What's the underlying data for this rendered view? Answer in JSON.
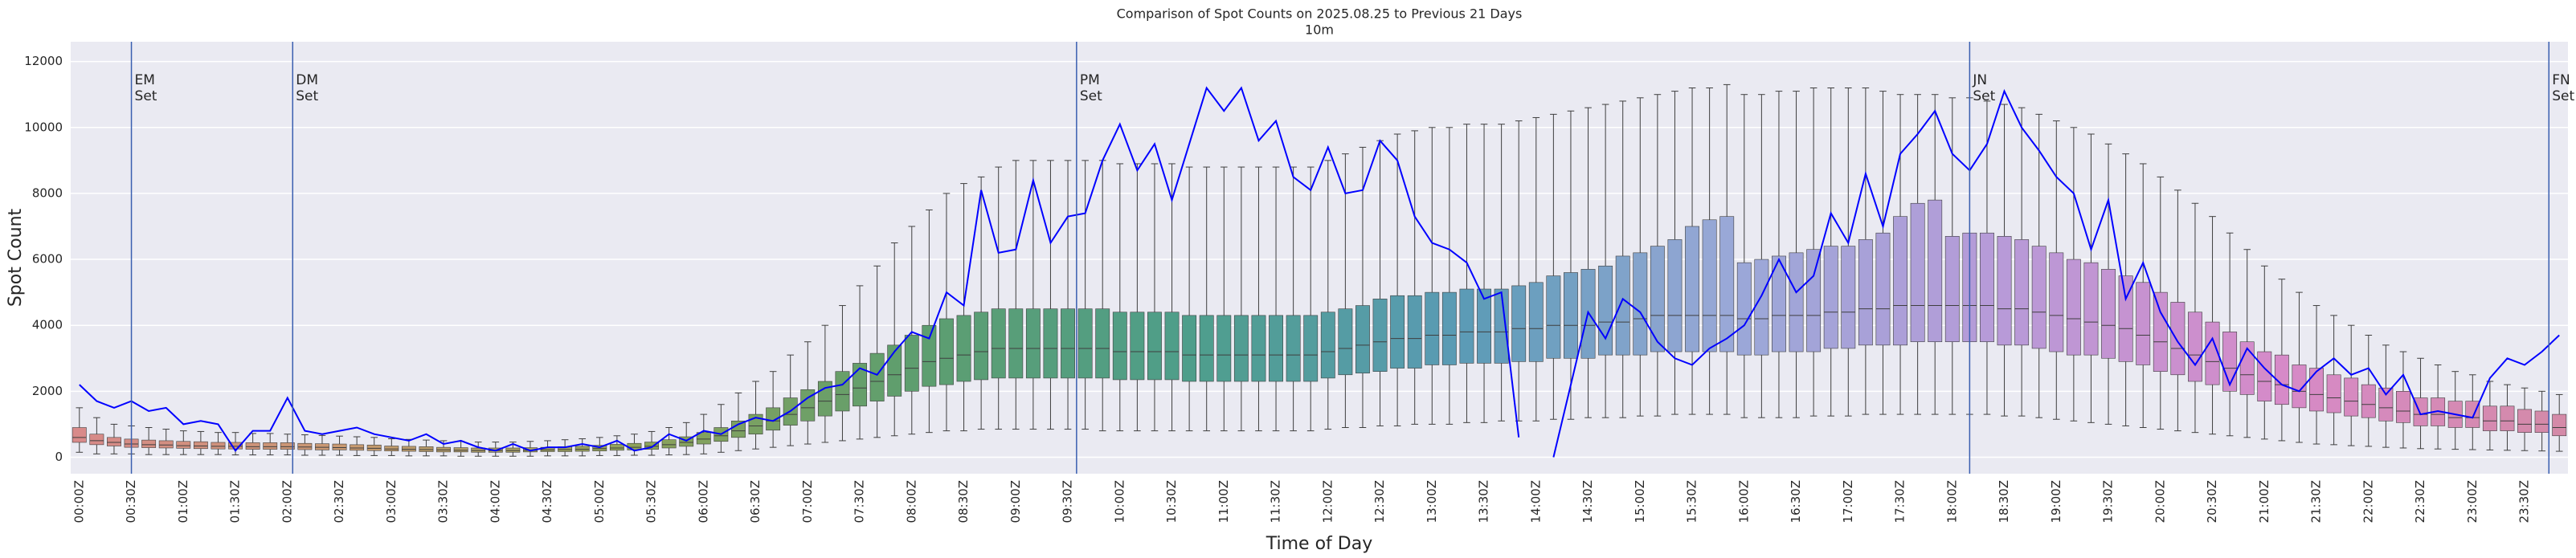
{
  "chart_data": {
    "type": "box",
    "title": "Comparison of Spot Counts on 2025.08.25 to Previous 21 Days",
    "subtitle": "10m",
    "x_label": "Time of Day",
    "y_label": "Spot Count",
    "ylim": [
      -500,
      12600
    ],
    "yticks": [
      0,
      2000,
      4000,
      6000,
      8000,
      10000,
      12000
    ],
    "grid": true,
    "categories": [
      "00:00Z",
      null,
      null,
      "00:30Z",
      null,
      null,
      "01:00Z",
      null,
      null,
      "01:30Z",
      null,
      null,
      "02:00Z",
      null,
      null,
      "02:30Z",
      null,
      null,
      "03:00Z",
      null,
      null,
      "03:30Z",
      null,
      null,
      "04:00Z",
      null,
      null,
      "04:30Z",
      null,
      null,
      "05:00Z",
      null,
      null,
      "05:30Z",
      null,
      null,
      "06:00Z",
      null,
      null,
      "06:30Z",
      null,
      null,
      "07:00Z",
      null,
      null,
      "07:30Z",
      null,
      null,
      "08:00Z",
      null,
      null,
      "08:30Z",
      null,
      null,
      "09:00Z",
      null,
      null,
      "09:30Z",
      null,
      null,
      "10:00Z",
      null,
      null,
      "10:30Z",
      null,
      null,
      "11:00Z",
      null,
      null,
      "11:30Z",
      null,
      null,
      "12:00Z",
      null,
      null,
      "12:30Z",
      null,
      null,
      "13:00Z",
      null,
      null,
      "13:30Z",
      null,
      null,
      "14:00Z",
      null,
      null,
      "14:30Z",
      null,
      null,
      "15:00Z",
      null,
      null,
      "15:30Z",
      null,
      null,
      "16:00Z",
      null,
      null,
      "16:30Z",
      null,
      null,
      "17:00Z",
      null,
      null,
      "17:30Z",
      null,
      null,
      "18:00Z",
      null,
      null,
      "18:30Z",
      null,
      null,
      "19:00Z",
      null,
      null,
      "19:30Z",
      null,
      null,
      "20:00Z",
      null,
      null,
      "20:30Z",
      null,
      null,
      "21:00Z",
      null,
      null,
      "21:30Z",
      null,
      null,
      "22:00Z",
      null,
      null,
      "22:30Z",
      null,
      null,
      "23:00Z",
      null,
      null,
      "23:30Z",
      null,
      null
    ],
    "palette": [
      "#d88a8a",
      "#c89a70",
      "#8fa35a",
      "#5e9e6e",
      "#4e9e8a",
      "#5a9bb5",
      "#9aa8d8",
      "#b89ad8",
      "#d68ac8",
      "#d48aa8"
    ],
    "boxes": {
      "median": [
        600,
        500,
        450,
        400,
        380,
        370,
        350,
        340,
        330,
        330,
        320,
        320,
        320,
        310,
        300,
        290,
        280,
        270,
        250,
        240,
        230,
        220,
        210,
        200,
        200,
        200,
        210,
        220,
        230,
        240,
        260,
        280,
        300,
        330,
        380,
        450,
        550,
        650,
        800,
        950,
        1100,
        1300,
        1500,
        1700,
        1900,
        2100,
        2300,
        2500,
        2700,
        2900,
        3000,
        3100,
        3200,
        3300,
        3300,
        3300,
        3300,
        3300,
        3300,
        3300,
        3200,
        3200,
        3200,
        3200,
        3100,
        3100,
        3100,
        3100,
        3100,
        3100,
        3100,
        3100,
        3200,
        3300,
        3400,
        3500,
        3600,
        3600,
        3700,
        3700,
        3800,
        3800,
        3800,
        3900,
        3900,
        4000,
        4000,
        4000,
        4100,
        4100,
        4200,
        4300,
        4300,
        4300,
        4300,
        4300,
        4200,
        4200,
        4300,
        4300,
        4300,
        4400,
        4400,
        4500,
        4500,
        4600,
        4600,
        4600,
        4600,
        4600,
        4600,
        4500,
        4500,
        4400,
        4300,
        4200,
        4100,
        4000,
        3900,
        3700,
        3500,
        3300,
        3100,
        2900,
        2700,
        2500,
        2300,
        2200,
        2000,
        1900,
        1800,
        1700,
        1600,
        1500,
        1400,
        1300,
        1300,
        1200,
        1200,
        1100,
        1100,
        1000,
        1000,
        900
      ],
      "q1": [
        450,
        380,
        340,
        300,
        290,
        280,
        270,
        260,
        250,
        250,
        240,
        240,
        240,
        230,
        220,
        220,
        210,
        200,
        190,
        180,
        170,
        160,
        160,
        150,
        150,
        150,
        160,
        170,
        170,
        180,
        190,
        210,
        220,
        240,
        280,
        330,
        400,
        480,
        600,
        700,
        820,
        970,
        1100,
        1250,
        1400,
        1550,
        1700,
        1850,
        2000,
        2150,
        2200,
        2300,
        2350,
        2400,
        2400,
        2400,
        2400,
        2400,
        2400,
        2400,
        2350,
        2350,
        2350,
        2350,
        2300,
        2300,
        2300,
        2300,
        2300,
        2300,
        2300,
        2300,
        2400,
        2500,
        2550,
        2600,
        2700,
        2700,
        2800,
        2800,
        2850,
        2850,
        2850,
        2900,
        2900,
        3000,
        3000,
        3000,
        3100,
        3100,
        3100,
        3200,
        3200,
        3200,
        3200,
        3200,
        3100,
        3100,
        3200,
        3200,
        3200,
        3300,
        3300,
        3400,
        3400,
        3400,
        3500,
        3500,
        3500,
        3500,
        3500,
        3400,
        3400,
        3300,
        3200,
        3100,
        3100,
        3000,
        2900,
        2800,
        2600,
        2500,
        2300,
        2200,
        2000,
        1900,
        1700,
        1600,
        1500,
        1400,
        1350,
        1250,
        1200,
        1100,
        1050,
        950,
        950,
        900,
        900,
        800,
        800,
        750,
        750,
        650
      ],
      "q3": [
        900,
        700,
        600,
        550,
        520,
        500,
        480,
        470,
        450,
        450,
        440,
        440,
        440,
        420,
        410,
        400,
        380,
        370,
        340,
        330,
        320,
        300,
        290,
        280,
        280,
        280,
        290,
        300,
        320,
        330,
        360,
        390,
        420,
        460,
        530,
        620,
        750,
        900,
        1100,
        1300,
        1500,
        1800,
        2050,
        2300,
        2600,
        2850,
        3150,
        3400,
        3700,
        4000,
        4200,
        4300,
        4400,
        4500,
        4500,
        4500,
        4500,
        4500,
        4500,
        4500,
        4400,
        4400,
        4400,
        4400,
        4300,
        4300,
        4300,
        4300,
        4300,
        4300,
        4300,
        4300,
        4400,
        4500,
        4600,
        4800,
        4900,
        4900,
        5000,
        5000,
        5100,
        5100,
        5100,
        5200,
        5300,
        5500,
        5600,
        5700,
        5800,
        6100,
        6200,
        6400,
        6600,
        7000,
        7200,
        7300,
        5900,
        6000,
        6100,
        6200,
        6300,
        6400,
        6400,
        6600,
        6800,
        7300,
        7700,
        7800,
        6700,
        6800,
        6800,
        6700,
        6600,
        6400,
        6200,
        6000,
        5900,
        5700,
        5500,
        5300,
        5000,
        4700,
        4400,
        4100,
        3800,
        3500,
        3200,
        3100,
        2800,
        2700,
        2500,
        2400,
        2200,
        2100,
        2000,
        1800,
        1800,
        1700,
        1700,
        1550,
        1550,
        1450,
        1400,
        1300
      ],
      "whislo": [
        150,
        100,
        100,
        100,
        80,
        80,
        80,
        80,
        80,
        70,
        70,
        70,
        70,
        60,
        60,
        60,
        50,
        50,
        50,
        40,
        40,
        40,
        30,
        30,
        30,
        30,
        30,
        40,
        40,
        40,
        50,
        50,
        60,
        60,
        70,
        80,
        100,
        150,
        200,
        250,
        300,
        350,
        400,
        450,
        500,
        550,
        600,
        650,
        700,
        750,
        800,
        800,
        850,
        850,
        850,
        850,
        850,
        850,
        850,
        800,
        800,
        800,
        800,
        800,
        800,
        800,
        800,
        800,
        800,
        800,
        800,
        800,
        850,
        900,
        900,
        950,
        950,
        1000,
        1000,
        1000,
        1050,
        1050,
        1100,
        1100,
        1100,
        1150,
        1150,
        1200,
        1200,
        1200,
        1250,
        1250,
        1300,
        1300,
        1300,
        1300,
        1200,
        1200,
        1200,
        1200,
        1250,
        1250,
        1250,
        1300,
        1300,
        1300,
        1300,
        1300,
        1300,
        1300,
        1300,
        1250,
        1250,
        1200,
        1150,
        1100,
        1050,
        1000,
        950,
        900,
        850,
        800,
        750,
        700,
        650,
        600,
        550,
        500,
        450,
        400,
        380,
        350,
        330,
        300,
        280,
        260,
        250,
        240,
        230,
        220,
        210,
        200,
        190,
        180
      ],
      "whishi": [
        1500,
        1200,
        1000,
        950,
        900,
        850,
        800,
        780,
        750,
        750,
        720,
        720,
        700,
        680,
        660,
        640,
        620,
        600,
        560,
        540,
        520,
        500,
        480,
        460,
        460,
        460,
        480,
        500,
        530,
        560,
        600,
        650,
        700,
        780,
        900,
        1050,
        1300,
        1600,
        1950,
        2300,
        2600,
        3100,
        3500,
        4000,
        4600,
        5200,
        5800,
        6500,
        7000,
        7500,
        8000,
        8300,
        8500,
        8800,
        9000,
        9000,
        9000,
        9000,
        9000,
        9000,
        8900,
        8900,
        8900,
        8900,
        8800,
        8800,
        8800,
        8800,
        8800,
        8800,
        8800,
        8800,
        9000,
        9200,
        9400,
        9600,
        9800,
        9900,
        10000,
        10000,
        10100,
        10100,
        10100,
        10200,
        10300,
        10400,
        10500,
        10600,
        10700,
        10800,
        10900,
        11000,
        11100,
        11200,
        11200,
        11300,
        11000,
        11000,
        11100,
        11100,
        11200,
        11200,
        11200,
        11200,
        11100,
        11000,
        11000,
        11000,
        10900,
        10900,
        10800,
        10700,
        10600,
        10400,
        10200,
        10000,
        9800,
        9500,
        9200,
        8900,
        8500,
        8100,
        7700,
        7300,
        6800,
        6300,
        5800,
        5400,
        5000,
        4600,
        4300,
        4000,
        3700,
        3400,
        3200,
        3000,
        2800,
        2600,
        2500,
        2300,
        2200,
        2100,
        2000,
        1900
      ]
    },
    "line": {
      "color": "#0000ff",
      "values": [
        2200,
        1700,
        1500,
        1700,
        1400,
        1500,
        1000,
        1100,
        1000,
        200,
        800,
        800,
        1800,
        800,
        700,
        800,
        900,
        700,
        600,
        500,
        700,
        400,
        500,
        300,
        200,
        400,
        200,
        300,
        300,
        400,
        300,
        500,
        200,
        300,
        700,
        500,
        800,
        700,
        1000,
        1200,
        1100,
        1400,
        1800,
        2100,
        2200,
        2700,
        2500,
        3200,
        3800,
        3600,
        5000,
        4600,
        8100,
        6200,
        6300,
        8400,
        6500,
        7300,
        7400,
        9000,
        10100,
        8700,
        9500,
        7800,
        9500,
        11200,
        10500,
        11200,
        9600,
        10200,
        8500,
        8100,
        9400,
        8000,
        8100,
        9600,
        9000,
        7300,
        6500,
        6300,
        5900,
        4800,
        5000,
        600,
        null,
        0,
        2200,
        4400,
        3600,
        4800,
        4400,
        3500,
        3000,
        2800,
        3300,
        3600,
        4000,
        4900,
        6000,
        5000,
        5500,
        7400,
        6500,
        8600,
        7000,
        9200,
        9800,
        10500,
        9200,
        8700,
        9500,
        11100,
        10000,
        9300,
        8500,
        8000,
        6300,
        7800,
        4800,
        5900,
        4400,
        3500,
        2800,
        3600,
        2200,
        3300,
        2700,
        2200,
        2000,
        2600,
        3000,
        2500,
        2700,
        1900,
        2500,
        1300,
        1400,
        1300,
        1200,
        2400,
        3000,
        2800,
        3200,
        3700
      ]
    },
    "vlines": {
      "color": "#3a5fb0",
      "items": [
        {
          "index": 3,
          "text": [
            "EM",
            "Set"
          ]
        },
        {
          "index": 12.3,
          "text": [
            "DM",
            "Set"
          ]
        },
        {
          "index": 57.5,
          "text": [
            "PM",
            "Set"
          ]
        },
        {
          "index": 109,
          "text": [
            "JN",
            "Set"
          ]
        },
        {
          "index": 142.4,
          "text": [
            "FN",
            "Set"
          ]
        }
      ]
    }
  }
}
